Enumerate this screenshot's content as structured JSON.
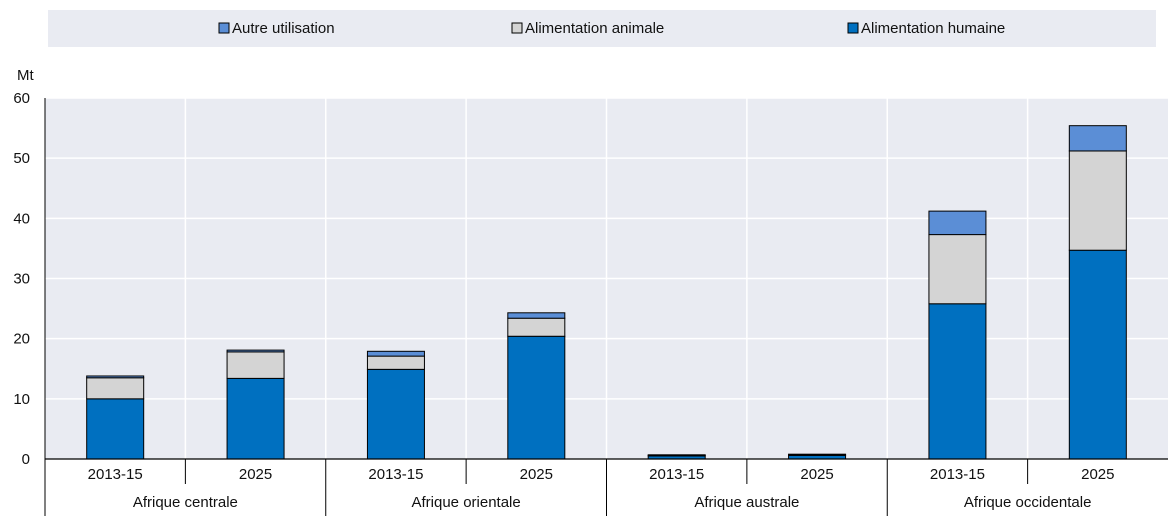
{
  "chart_data": {
    "type": "bar",
    "stacked": true,
    "ylabel": "Mt",
    "ylim": [
      0,
      60
    ],
    "yticks": [
      0,
      10,
      20,
      30,
      40,
      50,
      60
    ],
    "grid": true,
    "legend_position": "top",
    "categories": [
      "2013-15",
      "2025",
      "2013-15",
      "2025",
      "2013-15",
      "2025",
      "2013-15",
      "2025"
    ],
    "groups": [
      "Afrique centrale",
      "Afrique orientale",
      "Afrique australe",
      "Afrique occidentale"
    ],
    "legend_order": [
      2,
      1,
      0
    ],
    "series": [
      {
        "name": "Alimentation humaine",
        "color": "#0070c0",
        "values": [
          10.0,
          13.4,
          14.9,
          20.4,
          0.5,
          0.6,
          25.8,
          34.7
        ]
      },
      {
        "name": "Alimentation animale",
        "color": "#d4d4d4",
        "values": [
          3.5,
          4.4,
          2.2,
          3.0,
          0.1,
          0.1,
          11.5,
          16.5
        ]
      },
      {
        "name": "Autre utilisation",
        "color": "#5b8ed6",
        "values": [
          0.3,
          0.3,
          0.8,
          0.9,
          0.1,
          0.1,
          3.9,
          4.2
        ]
      }
    ]
  }
}
